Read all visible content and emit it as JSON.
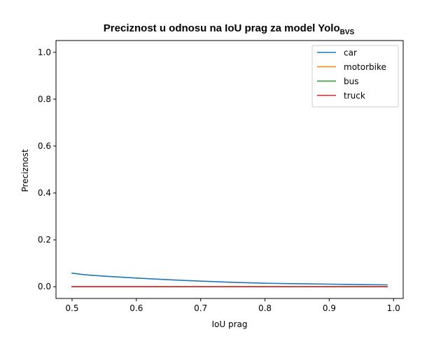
{
  "chart_data": {
    "type": "line",
    "title": "Preciznost u odnosu na IoU prag za model Yolo",
    "title_subscript": "BVS",
    "xlabel": "IoU prag",
    "ylabel": "Preciznost",
    "xlim": [
      0.475,
      1.015
    ],
    "ylim": [
      -0.05,
      1.05
    ],
    "xticks": [
      0.5,
      0.6,
      0.7,
      0.8,
      0.9,
      1.0
    ],
    "xtick_labels": [
      "0.5",
      "0.6",
      "0.7",
      "0.8",
      "0.9",
      "1.0"
    ],
    "yticks": [
      0.0,
      0.2,
      0.4,
      0.6,
      0.8,
      1.0
    ],
    "ytick_labels": [
      "0.0",
      "0.2",
      "0.4",
      "0.6",
      "0.8",
      "1.0"
    ],
    "grid": false,
    "legend_position": "upper right",
    "series": [
      {
        "name": "car",
        "color": "#1f77b4",
        "x": [
          0.5,
          0.52,
          0.55,
          0.6,
          0.65,
          0.7,
          0.75,
          0.8,
          0.85,
          0.9,
          0.95,
          0.99
        ],
        "y": [
          0.058,
          0.051,
          0.045,
          0.037,
          0.03,
          0.024,
          0.019,
          0.015,
          0.013,
          0.011,
          0.009,
          0.008
        ]
      },
      {
        "name": "motorbike",
        "color": "#ff7f0e",
        "x": [
          0.5,
          0.99
        ],
        "y": [
          0.0,
          0.0
        ]
      },
      {
        "name": "bus",
        "color": "#2ca02c",
        "x": [
          0.5,
          0.99
        ],
        "y": [
          0.0,
          0.0
        ]
      },
      {
        "name": "truck",
        "color": "#d62728",
        "x": [
          0.5,
          0.99
        ],
        "y": [
          0.0,
          0.0
        ]
      }
    ]
  }
}
